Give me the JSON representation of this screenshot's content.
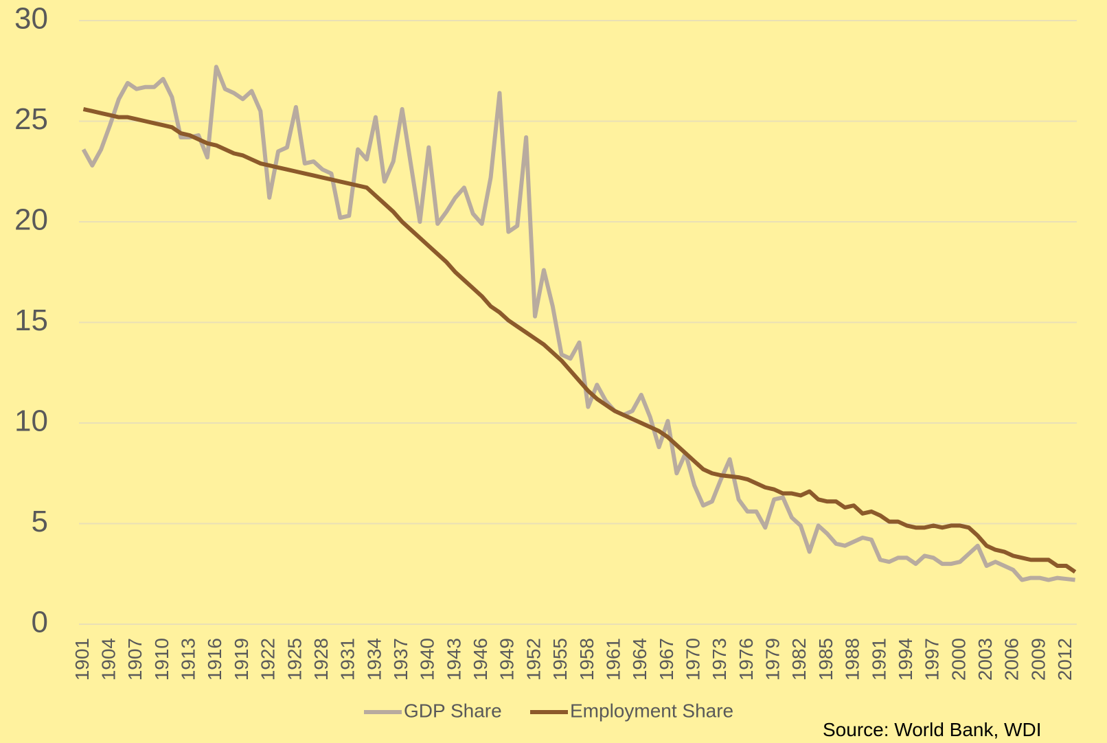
{
  "chart_data": {
    "type": "line",
    "categories": [
      "1901",
      null,
      null,
      "1904",
      null,
      null,
      "1907",
      null,
      null,
      "1910",
      null,
      null,
      "1913",
      null,
      null,
      "1916",
      null,
      null,
      "1919",
      null,
      null,
      "1922",
      null,
      null,
      "1925",
      null,
      null,
      "1928",
      null,
      null,
      "1931",
      null,
      null,
      "1934",
      null,
      null,
      "1937",
      null,
      null,
      "1940",
      null,
      null,
      "1943",
      null,
      null,
      "1946",
      null,
      null,
      "1949",
      null,
      null,
      "1952",
      null,
      null,
      "1955",
      null,
      null,
      "1958",
      null,
      null,
      "1961",
      null,
      null,
      "1964",
      null,
      null,
      "1967",
      null,
      null,
      "1970",
      null,
      null,
      "1973",
      null,
      null,
      "1976",
      null,
      null,
      "1979",
      null,
      null,
      "1982",
      null,
      null,
      "1985",
      null,
      null,
      "1988",
      null,
      null,
      "1991",
      null,
      null,
      "1994",
      null,
      null,
      "1997",
      null,
      null,
      "2000",
      null,
      null,
      "2003",
      null,
      null,
      "2006",
      null,
      null,
      "2009",
      null,
      null,
      "2012",
      null
    ],
    "series": [
      {
        "name": "GDP Share",
        "color": "#b8ab9f",
        "values": [
          23.6,
          22.8,
          23.6,
          24.8,
          26.1,
          26.9,
          26.6,
          26.7,
          26.7,
          27.1,
          26.2,
          24.2,
          24.2,
          24.3,
          23.2,
          27.7,
          26.6,
          26.4,
          26.1,
          26.5,
          25.5,
          21.2,
          23.5,
          23.7,
          25.7,
          22.9,
          23.0,
          22.6,
          22.4,
          20.2,
          20.3,
          23.6,
          23.1,
          25.2,
          22.0,
          23.0,
          25.6,
          22.8,
          20.0,
          23.7,
          19.9,
          20.5,
          21.2,
          21.7,
          20.4,
          19.9,
          22.2,
          26.4,
          19.5,
          19.8,
          24.2,
          15.3,
          17.6,
          15.8,
          13.4,
          13.2,
          14.0,
          10.8,
          11.9,
          11.1,
          10.6,
          10.4,
          10.6,
          11.4,
          10.3,
          8.8,
          10.1,
          7.5,
          8.5,
          6.9,
          5.9,
          6.1,
          7.2,
          8.2,
          6.2,
          5.6,
          5.6,
          4.8,
          6.2,
          6.3,
          5.3,
          4.9,
          3.6,
          4.9,
          4.5,
          4.0,
          3.9,
          4.1,
          4.3,
          4.2,
          3.2,
          3.1,
          3.3,
          3.3,
          3.0,
          3.4,
          3.3,
          3.0,
          3.0,
          3.1,
          3.5,
          3.9,
          2.9,
          3.1,
          2.9,
          2.7,
          2.2,
          2.3,
          2.3,
          2.2,
          2.3,
          2.25,
          2.2
        ]
      },
      {
        "name": "Employment Share",
        "color": "#8c5a2b",
        "values": [
          25.6,
          25.5,
          25.4,
          25.3,
          25.2,
          25.2,
          25.1,
          25.0,
          24.9,
          24.8,
          24.7,
          24.4,
          24.3,
          24.1,
          23.9,
          23.8,
          23.6,
          23.4,
          23.3,
          23.1,
          22.9,
          22.8,
          22.7,
          22.6,
          22.5,
          22.4,
          22.3,
          22.2,
          22.1,
          22.0,
          21.9,
          21.8,
          21.7,
          21.3,
          20.9,
          20.5,
          20.0,
          19.6,
          19.2,
          18.8,
          18.4,
          18.0,
          17.5,
          17.1,
          16.7,
          16.3,
          15.8,
          15.5,
          15.1,
          14.8,
          14.5,
          14.2,
          13.9,
          13.5,
          13.1,
          12.6,
          12.1,
          11.6,
          11.2,
          10.9,
          10.6,
          10.4,
          10.2,
          10.0,
          9.8,
          9.6,
          9.3,
          8.9,
          8.5,
          8.1,
          7.7,
          7.5,
          7.4,
          7.35,
          7.3,
          7.2,
          7.0,
          6.8,
          6.7,
          6.5,
          6.5,
          6.4,
          6.6,
          6.2,
          6.1,
          6.1,
          5.8,
          5.9,
          5.5,
          5.6,
          5.4,
          5.1,
          5.1,
          4.9,
          4.8,
          4.8,
          4.9,
          4.8,
          4.9,
          4.9,
          4.8,
          4.4,
          3.9,
          3.7,
          3.6,
          3.4,
          3.3,
          3.2,
          3.2,
          3.2,
          2.9,
          2.9,
          2.6
        ]
      }
    ],
    "ylim": [
      0,
      30
    ],
    "yticks": [
      0,
      5,
      10,
      15,
      20,
      25,
      30
    ],
    "grid": true,
    "legend": "bottom",
    "source": "Source: World Bank, WDI"
  }
}
